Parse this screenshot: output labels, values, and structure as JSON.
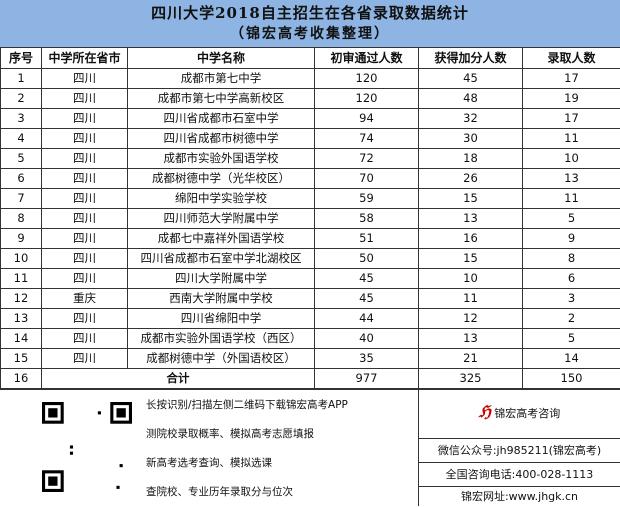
{
  "title": {
    "line1": "四川大学2018自主招生在各省录取数据统计",
    "line2": "（锦宏高考收集整理）"
  },
  "headers": [
    "序号",
    "中学所在省市",
    "中学名称",
    "初审通过人数",
    "获得加分人数",
    "录取人数"
  ],
  "rows": [
    [
      "1",
      "四川",
      "成都市第七中学",
      "120",
      "45",
      "17"
    ],
    [
      "2",
      "四川",
      "成都市第七中学高新校区",
      "120",
      "48",
      "19"
    ],
    [
      "3",
      "四川",
      "四川省成都市石室中学",
      "94",
      "32",
      "17"
    ],
    [
      "4",
      "四川",
      "四川省成都市树德中学",
      "74",
      "30",
      "11"
    ],
    [
      "5",
      "四川",
      "成都市实验外国语学校",
      "72",
      "18",
      "10"
    ],
    [
      "6",
      "四川",
      "成都树德中学（光华校区）",
      "70",
      "26",
      "13"
    ],
    [
      "7",
      "四川",
      "绵阳中学实验学校",
      "59",
      "15",
      "11"
    ],
    [
      "8",
      "四川",
      "四川师范大学附属中学",
      "58",
      "13",
      "5"
    ],
    [
      "9",
      "四川",
      "成都七中嘉祥外国语学校",
      "51",
      "16",
      "9"
    ],
    [
      "10",
      "四川",
      "四川省成都市石室中学北湖校区",
      "50",
      "15",
      "8"
    ],
    [
      "11",
      "四川",
      "四川大学附属中学",
      "45",
      "10",
      "6"
    ],
    [
      "12",
      "重庆",
      "西南大学附属中学校",
      "45",
      "11",
      "3"
    ],
    [
      "13",
      "四川",
      "四川省绵阳中学",
      "44",
      "12",
      "2"
    ],
    [
      "14",
      "四川",
      "成都市实验外国语学校（西区）",
      "40",
      "13",
      "5"
    ],
    [
      "15",
      "四川",
      "成都树德中学（外国语校区）",
      "35",
      "21",
      "14"
    ]
  ],
  "total": {
    "index": "16",
    "label": "合计",
    "passed": "977",
    "bonus": "325",
    "admitted": "150"
  },
  "promo": [
    "长按识别/扫描左侧二维码下载锦宏高考APP",
    "测院校录取概率、模拟高考志愿填报",
    "新高考选考查询、模拟选课",
    "查院校、专业历年录取分与位次"
  ],
  "brand": {
    "name": "锦宏高考咨询",
    "wechat": "微信公众号:jh985211(锦宏高考)",
    "phone": "全国咨询电话:400-028-1113",
    "website": "锦宏网址:www.jhgk.cn"
  },
  "watermark": "锦宏高考咨询",
  "colors": {
    "title_bg": "#8db4e2",
    "watermark": "#e63c3c",
    "logo": "#cc0000"
  }
}
